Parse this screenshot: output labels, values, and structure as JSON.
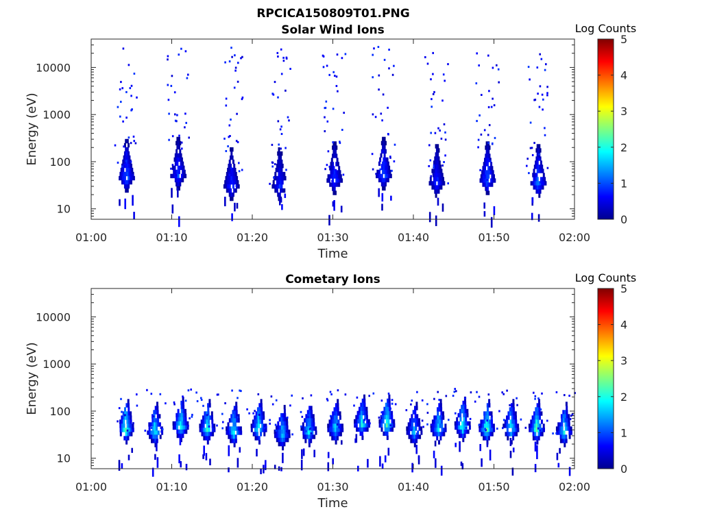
{
  "figure": {
    "title": "RPCICA150809T01.PNG"
  },
  "chart_data": [
    {
      "type": "heatmap",
      "title": "Solar Wind Ions",
      "xlabel": "Time",
      "ylabel": "Energy (eV)",
      "x_ticks": [
        "01:00",
        "01:10",
        "01:20",
        "01:30",
        "01:40",
        "01:50",
        "02:00"
      ],
      "xlim_minutes": [
        0,
        60
      ],
      "y_scale": "log",
      "y_ticks": [
        10,
        100,
        1000,
        10000
      ],
      "ylim": [
        6,
        40000
      ],
      "colorbar": {
        "label": "Log Counts",
        "range": [
          0,
          5
        ],
        "ticks": [
          0,
          1,
          2,
          3,
          4,
          5
        ],
        "colormap": "jet"
      },
      "bursts": [
        {
          "minute": 4.3,
          "peak_energy": 45,
          "max_log_counts": 1.3
        },
        {
          "minute": 10.7,
          "peak_energy": 50,
          "max_log_counts": 1.0
        },
        {
          "minute": 17.3,
          "peak_energy": 30,
          "max_log_counts": 1.0
        },
        {
          "minute": 23.3,
          "peak_energy": 30,
          "max_log_counts": 0.9
        },
        {
          "minute": 30.1,
          "peak_energy": 40,
          "max_log_counts": 1.0
        },
        {
          "minute": 36.2,
          "peak_energy": 50,
          "max_log_counts": 1.2
        },
        {
          "minute": 42.8,
          "peak_energy": 35,
          "max_log_counts": 0.9
        },
        {
          "minute": 49.1,
          "peak_energy": 40,
          "max_log_counts": 1.3
        },
        {
          "minute": 55.4,
          "peak_energy": 35,
          "max_log_counts": 1.3
        }
      ]
    },
    {
      "type": "heatmap",
      "title": "Cometary Ions",
      "xlabel": "Time",
      "ylabel": "Energy (eV)",
      "x_ticks": [
        "01:00",
        "01:10",
        "01:20",
        "01:30",
        "01:40",
        "01:50",
        "02:00"
      ],
      "xlim_minutes": [
        0,
        60
      ],
      "y_scale": "log",
      "y_ticks": [
        10,
        100,
        1000,
        10000
      ],
      "ylim": [
        6,
        40000
      ],
      "colorbar": {
        "label": "Log Counts",
        "range": [
          0,
          5
        ],
        "ticks": [
          0,
          1,
          2,
          3,
          4,
          5
        ],
        "colormap": "jet"
      },
      "bursts": [
        {
          "minute": 4.2,
          "peak_energy": 40,
          "max_log_counts": 2.4
        },
        {
          "minute": 7.8,
          "peak_energy": 35,
          "max_log_counts": 2.0
        },
        {
          "minute": 11.0,
          "peak_energy": 45,
          "max_log_counts": 2.2
        },
        {
          "minute": 14.3,
          "peak_energy": 40,
          "max_log_counts": 2.1
        },
        {
          "minute": 17.6,
          "peak_energy": 35,
          "max_log_counts": 2.0
        },
        {
          "minute": 20.7,
          "peak_energy": 40,
          "max_log_counts": 2.1
        },
        {
          "minute": 23.6,
          "peak_energy": 30,
          "max_log_counts": 1.8
        },
        {
          "minute": 26.9,
          "peak_energy": 35,
          "max_log_counts": 1.9
        },
        {
          "minute": 30.2,
          "peak_energy": 40,
          "max_log_counts": 1.8
        },
        {
          "minute": 33.5,
          "peak_energy": 50,
          "max_log_counts": 2.0
        },
        {
          "minute": 36.6,
          "peak_energy": 50,
          "max_log_counts": 2.4
        },
        {
          "minute": 40.0,
          "peak_energy": 35,
          "max_log_counts": 1.6
        },
        {
          "minute": 43.0,
          "peak_energy": 40,
          "max_log_counts": 2.0
        },
        {
          "minute": 46.0,
          "peak_energy": 45,
          "max_log_counts": 2.2
        },
        {
          "minute": 49.0,
          "peak_energy": 40,
          "max_log_counts": 2.3
        },
        {
          "minute": 52.0,
          "peak_energy": 40,
          "max_log_counts": 2.0
        },
        {
          "minute": 55.2,
          "peak_energy": 40,
          "max_log_counts": 2.3
        },
        {
          "minute": 58.6,
          "peak_energy": 35,
          "max_log_counts": 2.0
        }
      ]
    }
  ]
}
